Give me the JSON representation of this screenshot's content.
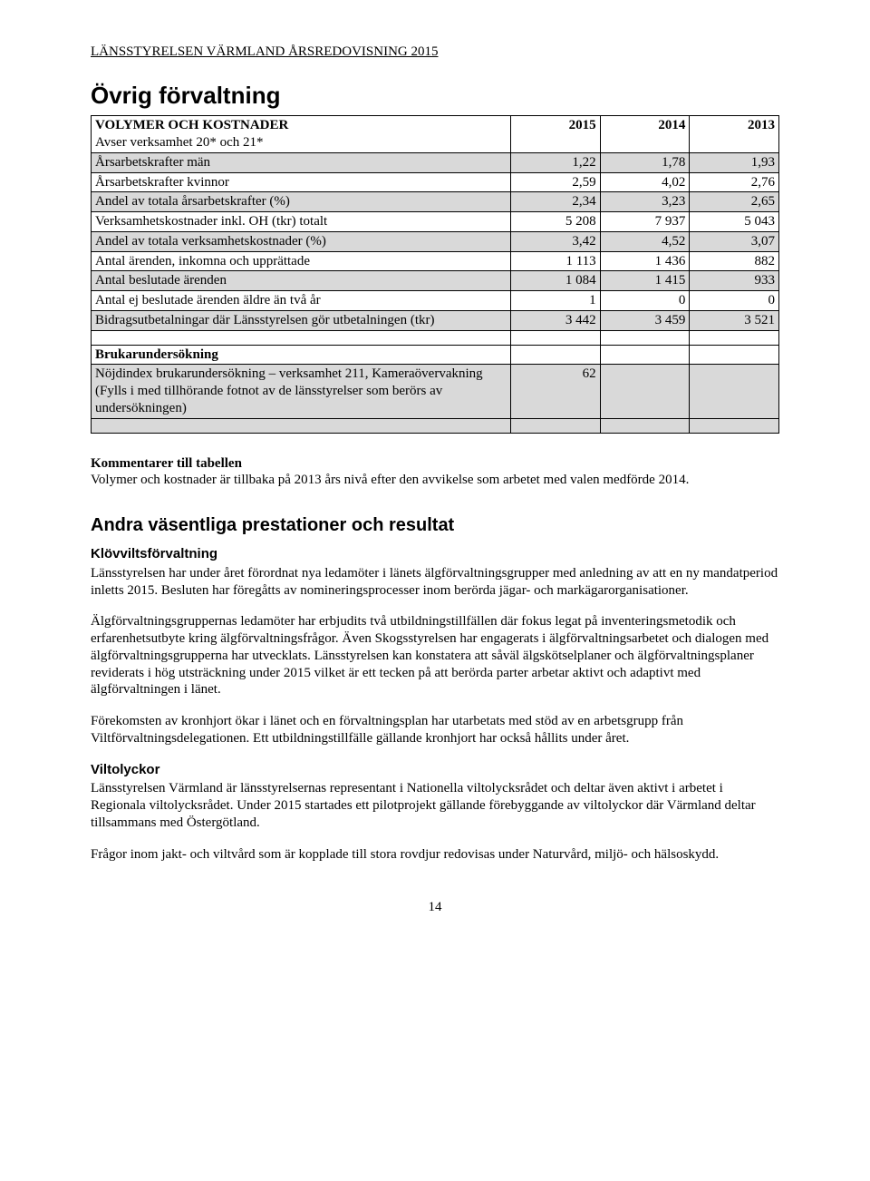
{
  "header": "LÄNSSTYRELSEN VÄRMLAND ÅRSREDOVISNING 2015",
  "title": "Övrig förvaltning",
  "table": {
    "header_label": "VOLYMER OCH KOSTNADER",
    "header_sub": "Avser verksamhet 20* och 21*",
    "years": [
      "2015",
      "2014",
      "2013"
    ],
    "rows": [
      {
        "label": "Årsarbetskrafter män",
        "vals": [
          "1,22",
          "1,78",
          "1,93"
        ],
        "shaded": true
      },
      {
        "label": "Årsarbetskrafter kvinnor",
        "vals": [
          "2,59",
          "4,02",
          "2,76"
        ],
        "shaded": false
      },
      {
        "label": "Andel av totala årsarbetskrafter (%)",
        "vals": [
          "2,34",
          "3,23",
          "2,65"
        ],
        "shaded": true
      },
      {
        "label": "Verksamhetskostnader inkl. OH (tkr) totalt",
        "vals": [
          "5 208",
          "7 937",
          "5 043"
        ],
        "shaded": false
      },
      {
        "label": "Andel av totala verksamhetskostnader (%)",
        "vals": [
          "3,42",
          "4,52",
          "3,07"
        ],
        "shaded": true
      },
      {
        "label": "Antal ärenden, inkomna och upprättade",
        "vals": [
          "1 113",
          "1 436",
          "882"
        ],
        "shaded": false
      },
      {
        "label": "Antal beslutade ärenden",
        "vals": [
          "1 084",
          "1 415",
          "933"
        ],
        "shaded": true
      },
      {
        "label": "Antal ej beslutade ärenden äldre än två år",
        "vals": [
          "1",
          "0",
          "0"
        ],
        "shaded": false
      },
      {
        "label": "Bidragsutbetalningar där Länsstyrelsen gör utbetalningen (tkr)",
        "vals": [
          "3 442",
          "3 459",
          "3 521"
        ],
        "shaded": true
      }
    ],
    "survey_header": "Brukarundersökning",
    "survey_label": "Nöjdindex brukarundersökning – verksamhet 211, Kameraövervakning (Fylls i med tillhörande fotnot av de länsstyrelser som berörs av undersökningen)",
    "survey_vals": [
      "62",
      "",
      ""
    ]
  },
  "comments": {
    "title": "Kommentarer till tabellen",
    "text": "Volymer och kostnader är tillbaka på 2013 års nivå efter den avvikelse som arbetet med valen medförde 2014."
  },
  "section2_title": "Andra väsentliga prestationer och resultat",
  "klov": {
    "title": "Klövviltsförvaltning",
    "p1": "Länsstyrelsen har under året förordnat nya ledamöter i länets älgförvaltningsgrupper med anledning av att en ny mandatperiod inletts 2015. Besluten har föregåtts av nomineringsprocesser inom berörda jägar- och markägarorganisationer.",
    "p2": "Älgförvaltningsgruppernas ledamöter har erbjudits två utbildningstillfällen där fokus legat på inventeringsmetodik och erfarenhetsutbyte kring älgförvaltningsfrågor. Även Skogsstyrelsen har engagerats i älgförvaltningsarbetet och dialogen med älgförvaltningsgrupperna har utvecklats. Länsstyrelsen kan konstatera att såväl älgskötselplaner och älgförvaltningsplaner reviderats i hög utsträckning under 2015 vilket är ett tecken på att berörda parter arbetar aktivt och adaptivt med älgförvaltningen i länet.",
    "p3": "Förekomsten av kronhjort ökar i länet och en förvaltningsplan har utarbetats med stöd av en arbetsgrupp från Viltförvaltningsdelegationen. Ett utbildningstillfälle gällande kronhjort har också hållits under året."
  },
  "vilt": {
    "title": "Viltolyckor",
    "p1": "Länsstyrelsen Värmland är länsstyrelsernas representant i Nationella viltolycksrådet och deltar även aktivt i arbetet i Regionala viltolycksrådet. Under 2015 startades ett pilotprojekt gällande förebyggande av viltolyckor där Värmland deltar tillsammans med Östergötland.",
    "p2": "Frågor inom jakt- och viltvård som är kopplade till stora rovdjur redovisas under Naturvård, miljö- och hälsoskydd."
  },
  "page_number": "14"
}
